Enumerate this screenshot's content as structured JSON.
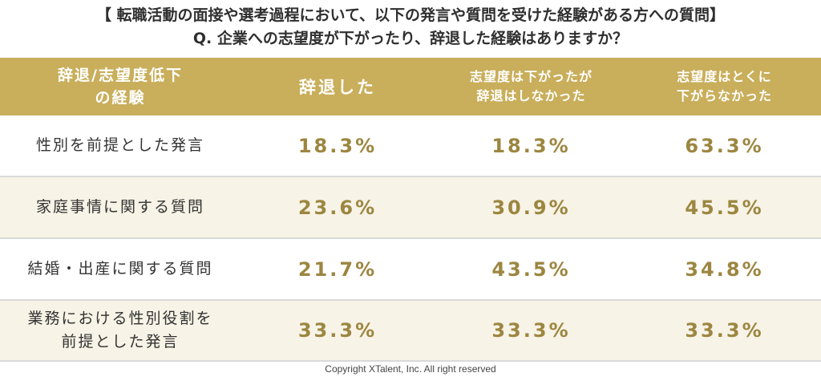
{
  "title": {
    "line1": "【 転職活動の面接や選考過程において、以下の発言や質問を受けた経験がある方への質問】",
    "line2": "Q. 企業への志望度が下がったり、辞退した経験はありますか？"
  },
  "table": {
    "header": {
      "category": [
        "辞退/志望度低下",
        "の経験"
      ],
      "columns": [
        {
          "lines": [
            "辞退した"
          ]
        },
        {
          "lines": [
            "志望度は下がったが",
            "辞退はしなかった"
          ]
        },
        {
          "lines": [
            "志望度はとくに",
            "下がらなかった"
          ]
        }
      ]
    },
    "rows": [
      {
        "label": [
          "性別を前提とした発言"
        ],
        "values": [
          "18.3%",
          "18.3%",
          "63.3%"
        ]
      },
      {
        "label": [
          "家庭事情に関する質問"
        ],
        "values": [
          "23.6%",
          "30.9%",
          "45.5%"
        ]
      },
      {
        "label": [
          "結婚・出産に関する質問"
        ],
        "values": [
          "21.7%",
          "43.5%",
          "34.8%"
        ]
      },
      {
        "label": [
          "業務における性別役割を",
          "前提とした発言"
        ],
        "values": [
          "33.3%",
          "33.3%",
          "33.3%"
        ]
      }
    ]
  },
  "footer": {
    "copyright": "Copyright XTalent, Inc. All right reserved"
  },
  "colors": {
    "header_bg": "#c9ae5b",
    "value_text": "#9c8640",
    "alt_row_bg": "#f7f3e6"
  }
}
